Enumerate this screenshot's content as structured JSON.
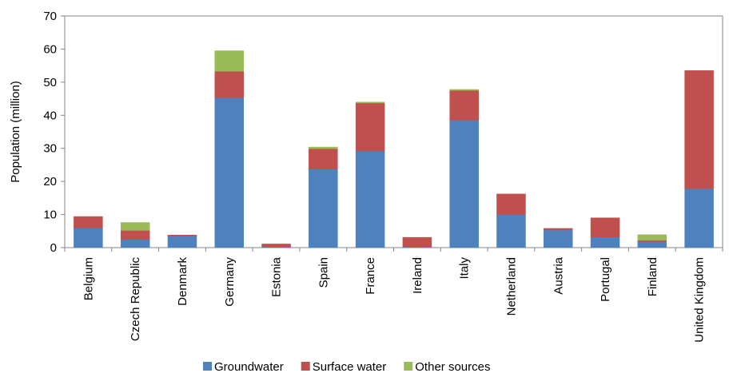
{
  "chart_data": {
    "type": "bar",
    "stacked": true,
    "title": "",
    "xlabel": "",
    "ylabel": "Population  (million)",
    "ylim": [
      0,
      70
    ],
    "yticks": [
      0,
      10,
      20,
      30,
      40,
      50,
      60,
      70
    ],
    "grid": false,
    "legend_position": "bottom",
    "categories": [
      "Belgium",
      "Czech Republic",
      "Denmark",
      "Germany",
      "Estonia",
      "Spain",
      "France",
      "Ireland",
      "Italy",
      "Netherland",
      "Austria",
      "Portugal",
      "Finland",
      "United Kingdom"
    ],
    "series": [
      {
        "name": "Groundwater",
        "color": "#4f81bd",
        "values": [
          6.0,
          2.5,
          3.5,
          45.3,
          0.3,
          23.7,
          29.2,
          0.3,
          38.5,
          10.0,
          5.3,
          3.2,
          1.8,
          17.8
        ]
      },
      {
        "name": "Surface water",
        "color": "#c0504d",
        "values": [
          3.4,
          2.7,
          0.3,
          8.0,
          0.8,
          6.2,
          14.5,
          2.8,
          9.0,
          6.2,
          0.5,
          5.8,
          0.4,
          35.7
        ]
      },
      {
        "name": "Other sources",
        "color": "#9bbb59",
        "values": [
          0.0,
          2.4,
          0.0,
          6.2,
          0.0,
          0.5,
          0.3,
          0.0,
          0.3,
          0.0,
          0.0,
          0.0,
          1.7,
          0.0
        ]
      }
    ]
  }
}
